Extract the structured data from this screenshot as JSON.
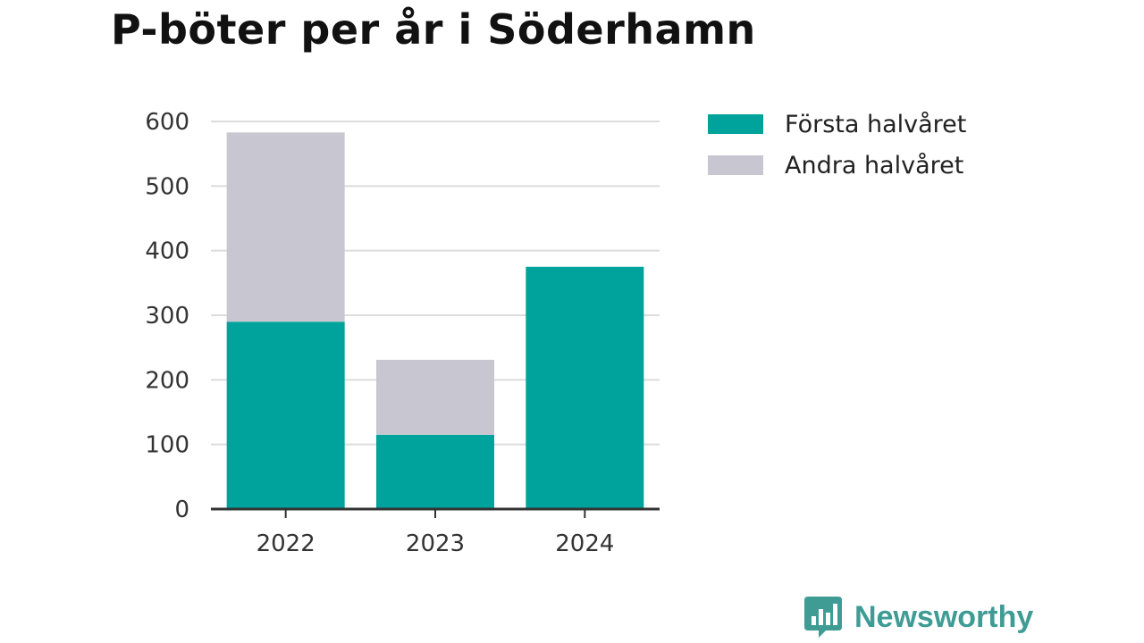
{
  "chart_data": {
    "type": "bar",
    "stacked": true,
    "title": "P-böter per år i Söderhamn",
    "categories": [
      "2022",
      "2023",
      "2024"
    ],
    "series": [
      {
        "name": "Första halvåret",
        "color": "#00a39b",
        "values": [
          290,
          115,
          375
        ]
      },
      {
        "name": "Andra halvåret",
        "color": "#c8c7d1",
        "values": [
          293,
          116,
          0
        ]
      }
    ],
    "ylim": [
      0,
      600
    ],
    "yticks": [
      0,
      100,
      200,
      300,
      400,
      500,
      600
    ],
    "grid": true,
    "legend_position": "right",
    "xlabel": "",
    "ylabel": ""
  },
  "brand": {
    "name": "Newsworthy",
    "icon": "bar-chart-speech-bubble-icon"
  }
}
